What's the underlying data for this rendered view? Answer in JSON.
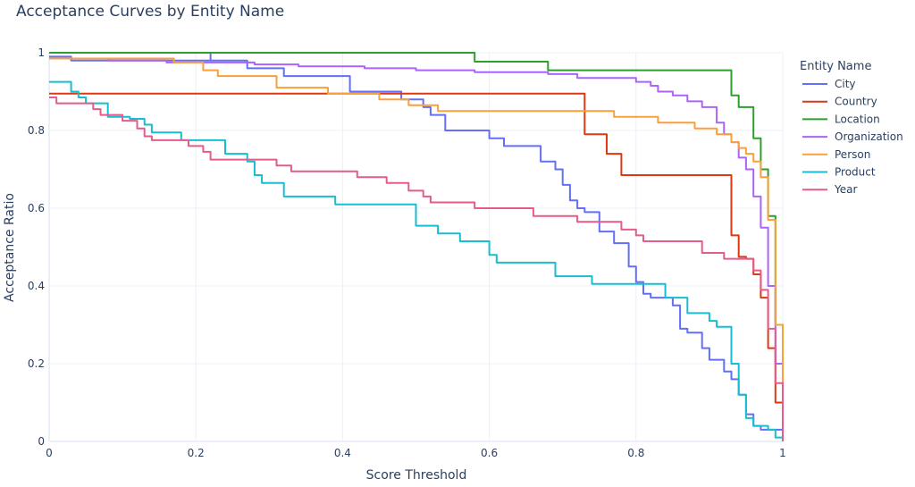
{
  "chart_data": {
    "type": "line",
    "title": "Acceptance Curves by Entity Name",
    "xlabel": "Score Threshold",
    "ylabel": "Acceptance Ratio",
    "xlim": [
      0,
      1
    ],
    "ylim": [
      0,
      1
    ],
    "x_ticks": [
      0,
      0.2,
      0.4,
      0.6,
      0.8,
      1
    ],
    "x_tick_labels": [
      "0",
      "0.2",
      "0.4",
      "0.6",
      "0.8",
      "1"
    ],
    "y_ticks": [
      0,
      0.2,
      0.4,
      0.6,
      0.8,
      1
    ],
    "y_tick_labels": [
      "0",
      "0.2",
      "0.4",
      "0.6",
      "0.8",
      "1"
    ],
    "grid": true,
    "legend_title": "Entity Name",
    "legend_position": "right",
    "series": [
      {
        "name": "City",
        "color": "#636efa",
        "step": true,
        "points": [
          [
            0,
            0.99
          ],
          [
            0.02,
            0.99
          ],
          [
            0.03,
            0.98
          ],
          [
            0.21,
            0.98
          ],
          [
            0.22,
            1.0
          ],
          [
            0.22,
            0.98
          ],
          [
            0.27,
            0.97
          ],
          [
            0.27,
            0.96
          ],
          [
            0.32,
            0.96
          ],
          [
            0.32,
            0.94
          ],
          [
            0.39,
            0.94
          ],
          [
            0.41,
            0.9
          ],
          [
            0.47,
            0.9
          ],
          [
            0.48,
            0.88
          ],
          [
            0.5,
            0.88
          ],
          [
            0.51,
            0.86
          ],
          [
            0.52,
            0.84
          ],
          [
            0.54,
            0.8
          ],
          [
            0.59,
            0.8
          ],
          [
            0.6,
            0.78
          ],
          [
            0.62,
            0.76
          ],
          [
            0.66,
            0.76
          ],
          [
            0.67,
            0.72
          ],
          [
            0.69,
            0.7
          ],
          [
            0.7,
            0.66
          ],
          [
            0.71,
            0.62
          ],
          [
            0.72,
            0.6
          ],
          [
            0.73,
            0.59
          ],
          [
            0.75,
            0.54
          ],
          [
            0.77,
            0.51
          ],
          [
            0.79,
            0.45
          ],
          [
            0.8,
            0.41
          ],
          [
            0.81,
            0.38
          ],
          [
            0.82,
            0.37
          ],
          [
            0.84,
            0.37
          ],
          [
            0.85,
            0.35
          ],
          [
            0.86,
            0.29
          ],
          [
            0.87,
            0.28
          ],
          [
            0.89,
            0.24
          ],
          [
            0.9,
            0.21
          ],
          [
            0.92,
            0.18
          ],
          [
            0.93,
            0.16
          ],
          [
            0.94,
            0.12
          ],
          [
            0.95,
            0.07
          ],
          [
            0.96,
            0.04
          ],
          [
            0.97,
            0.03
          ],
          [
            0.98,
            0.03
          ],
          [
            1.0,
            0.0
          ]
        ]
      },
      {
        "name": "Country",
        "color": "#dc3912",
        "step": true,
        "points": [
          [
            0,
            0.895
          ],
          [
            0.72,
            0.895
          ],
          [
            0.73,
            0.79
          ],
          [
            0.75,
            0.79
          ],
          [
            0.76,
            0.74
          ],
          [
            0.77,
            0.74
          ],
          [
            0.78,
            0.685
          ],
          [
            0.92,
            0.685
          ],
          [
            0.93,
            0.53
          ],
          [
            0.94,
            0.475
          ],
          [
            0.95,
            0.47
          ],
          [
            0.96,
            0.43
          ],
          [
            0.97,
            0.37
          ],
          [
            0.98,
            0.24
          ],
          [
            0.99,
            0.1
          ],
          [
            1.0,
            0.0
          ]
        ]
      },
      {
        "name": "Location",
        "color": "#2ca02c",
        "step": true,
        "points": [
          [
            0,
            1.0
          ],
          [
            0.57,
            1.0
          ],
          [
            0.58,
            0.977
          ],
          [
            0.67,
            0.977
          ],
          [
            0.68,
            0.955
          ],
          [
            0.92,
            0.955
          ],
          [
            0.93,
            0.89
          ],
          [
            0.94,
            0.86
          ],
          [
            0.95,
            0.86
          ],
          [
            0.96,
            0.78
          ],
          [
            0.97,
            0.7
          ],
          [
            0.98,
            0.58
          ],
          [
            0.99,
            0.3
          ],
          [
            1.0,
            0.0
          ]
        ]
      },
      {
        "name": "Organization",
        "color": "#ab63fa",
        "step": true,
        "points": [
          [
            0,
            0.985
          ],
          [
            0.06,
            0.985
          ],
          [
            0.08,
            0.98
          ],
          [
            0.15,
            0.98
          ],
          [
            0.16,
            0.975
          ],
          [
            0.27,
            0.975
          ],
          [
            0.28,
            0.97
          ],
          [
            0.32,
            0.97
          ],
          [
            0.34,
            0.965
          ],
          [
            0.42,
            0.965
          ],
          [
            0.43,
            0.96
          ],
          [
            0.49,
            0.96
          ],
          [
            0.5,
            0.955
          ],
          [
            0.56,
            0.955
          ],
          [
            0.58,
            0.95
          ],
          [
            0.67,
            0.95
          ],
          [
            0.68,
            0.945
          ],
          [
            0.7,
            0.945
          ],
          [
            0.72,
            0.935
          ],
          [
            0.78,
            0.935
          ],
          [
            0.8,
            0.925
          ],
          [
            0.82,
            0.915
          ],
          [
            0.83,
            0.9
          ],
          [
            0.85,
            0.89
          ],
          [
            0.87,
            0.875
          ],
          [
            0.89,
            0.86
          ],
          [
            0.91,
            0.82
          ],
          [
            0.92,
            0.79
          ],
          [
            0.93,
            0.77
          ],
          [
            0.94,
            0.73
          ],
          [
            0.95,
            0.7
          ],
          [
            0.96,
            0.63
          ],
          [
            0.97,
            0.55
          ],
          [
            0.98,
            0.4
          ],
          [
            0.99,
            0.2
          ],
          [
            1.0,
            0.0
          ]
        ]
      },
      {
        "name": "Person",
        "color": "#fb9f3a",
        "step": true,
        "points": [
          [
            0,
            0.985
          ],
          [
            0.16,
            0.985
          ],
          [
            0.17,
            0.975
          ],
          [
            0.2,
            0.975
          ],
          [
            0.21,
            0.955
          ],
          [
            0.23,
            0.94
          ],
          [
            0.3,
            0.94
          ],
          [
            0.31,
            0.91
          ],
          [
            0.37,
            0.91
          ],
          [
            0.38,
            0.895
          ],
          [
            0.44,
            0.895
          ],
          [
            0.45,
            0.88
          ],
          [
            0.48,
            0.88
          ],
          [
            0.49,
            0.865
          ],
          [
            0.52,
            0.865
          ],
          [
            0.53,
            0.85
          ],
          [
            0.76,
            0.85
          ],
          [
            0.77,
            0.835
          ],
          [
            0.82,
            0.835
          ],
          [
            0.83,
            0.82
          ],
          [
            0.87,
            0.82
          ],
          [
            0.88,
            0.805
          ],
          [
            0.9,
            0.805
          ],
          [
            0.91,
            0.79
          ],
          [
            0.92,
            0.79
          ],
          [
            0.93,
            0.77
          ],
          [
            0.94,
            0.755
          ],
          [
            0.95,
            0.74
          ],
          [
            0.96,
            0.72
          ],
          [
            0.97,
            0.68
          ],
          [
            0.98,
            0.57
          ],
          [
            0.99,
            0.3
          ],
          [
            1.0,
            0.0
          ]
        ]
      },
      {
        "name": "Product",
        "color": "#17becf",
        "step": true,
        "points": [
          [
            0,
            0.925
          ],
          [
            0.02,
            0.925
          ],
          [
            0.03,
            0.9
          ],
          [
            0.04,
            0.885
          ],
          [
            0.05,
            0.87
          ],
          [
            0.07,
            0.87
          ],
          [
            0.08,
            0.835
          ],
          [
            0.1,
            0.835
          ],
          [
            0.11,
            0.83
          ],
          [
            0.12,
            0.83
          ],
          [
            0.13,
            0.815
          ],
          [
            0.14,
            0.795
          ],
          [
            0.17,
            0.795
          ],
          [
            0.18,
            0.775
          ],
          [
            0.22,
            0.775
          ],
          [
            0.24,
            0.74
          ],
          [
            0.26,
            0.74
          ],
          [
            0.27,
            0.72
          ],
          [
            0.28,
            0.685
          ],
          [
            0.29,
            0.665
          ],
          [
            0.3,
            0.665
          ],
          [
            0.32,
            0.63
          ],
          [
            0.38,
            0.63
          ],
          [
            0.39,
            0.61
          ],
          [
            0.47,
            0.61
          ],
          [
            0.5,
            0.555
          ],
          [
            0.51,
            0.555
          ],
          [
            0.53,
            0.535
          ],
          [
            0.55,
            0.535
          ],
          [
            0.56,
            0.515
          ],
          [
            0.58,
            0.515
          ],
          [
            0.6,
            0.48
          ],
          [
            0.61,
            0.46
          ],
          [
            0.67,
            0.46
          ],
          [
            0.69,
            0.425
          ],
          [
            0.73,
            0.425
          ],
          [
            0.74,
            0.405
          ],
          [
            0.83,
            0.405
          ],
          [
            0.84,
            0.37
          ],
          [
            0.86,
            0.37
          ],
          [
            0.87,
            0.33
          ],
          [
            0.89,
            0.33
          ],
          [
            0.9,
            0.31
          ],
          [
            0.91,
            0.295
          ],
          [
            0.92,
            0.295
          ],
          [
            0.93,
            0.2
          ],
          [
            0.94,
            0.12
          ],
          [
            0.95,
            0.06
          ],
          [
            0.96,
            0.04
          ],
          [
            0.98,
            0.03
          ],
          [
            0.99,
            0.01
          ],
          [
            1.0,
            0.0
          ]
        ]
      },
      {
        "name": "Year",
        "color": "#e45b8c",
        "step": true,
        "points": [
          [
            0,
            0.885
          ],
          [
            0.01,
            0.87
          ],
          [
            0.05,
            0.87
          ],
          [
            0.06,
            0.855
          ],
          [
            0.07,
            0.84
          ],
          [
            0.09,
            0.84
          ],
          [
            0.1,
            0.825
          ],
          [
            0.11,
            0.825
          ],
          [
            0.12,
            0.805
          ],
          [
            0.13,
            0.785
          ],
          [
            0.14,
            0.775
          ],
          [
            0.18,
            0.775
          ],
          [
            0.19,
            0.76
          ],
          [
            0.2,
            0.76
          ],
          [
            0.21,
            0.745
          ],
          [
            0.22,
            0.725
          ],
          [
            0.3,
            0.725
          ],
          [
            0.31,
            0.71
          ],
          [
            0.32,
            0.71
          ],
          [
            0.33,
            0.695
          ],
          [
            0.41,
            0.695
          ],
          [
            0.42,
            0.68
          ],
          [
            0.45,
            0.68
          ],
          [
            0.46,
            0.665
          ],
          [
            0.48,
            0.665
          ],
          [
            0.49,
            0.645
          ],
          [
            0.5,
            0.645
          ],
          [
            0.51,
            0.63
          ],
          [
            0.52,
            0.615
          ],
          [
            0.57,
            0.615
          ],
          [
            0.58,
            0.6
          ],
          [
            0.65,
            0.6
          ],
          [
            0.66,
            0.58
          ],
          [
            0.71,
            0.58
          ],
          [
            0.72,
            0.565
          ],
          [
            0.77,
            0.565
          ],
          [
            0.78,
            0.545
          ],
          [
            0.79,
            0.545
          ],
          [
            0.8,
            0.53
          ],
          [
            0.81,
            0.515
          ],
          [
            0.88,
            0.515
          ],
          [
            0.89,
            0.485
          ],
          [
            0.91,
            0.485
          ],
          [
            0.92,
            0.47
          ],
          [
            0.95,
            0.47
          ],
          [
            0.96,
            0.44
          ],
          [
            0.97,
            0.39
          ],
          [
            0.98,
            0.29
          ],
          [
            0.99,
            0.15
          ],
          [
            1.0,
            0.0
          ]
        ]
      }
    ]
  }
}
